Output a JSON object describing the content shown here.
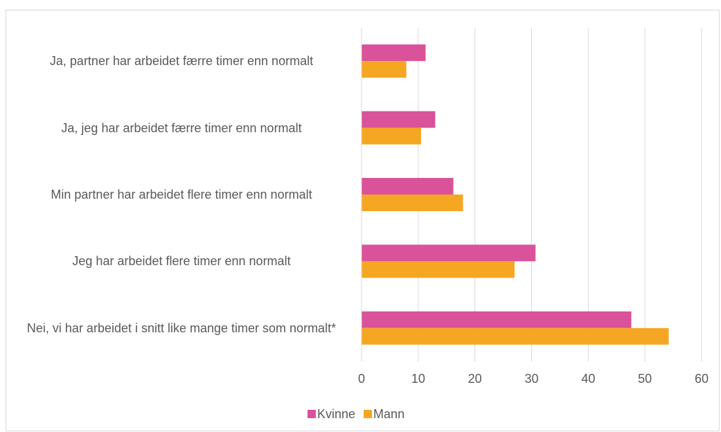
{
  "chart_data": {
    "type": "barh",
    "categories": [
      "Ja, partner har arbeidet  færre  timer enn normalt",
      "Ja, jeg har arbeidet  færre  timer enn normalt",
      "Min partner har arbeidet  flere  timer enn normalt",
      "Jeg har arbeidet  flere  timer enn normalt",
      "Nei, vi har arbeidet i snitt like mange timer som normalt*"
    ],
    "series": [
      {
        "name": "Kvinne",
        "color": "#d9529a",
        "values": [
          11.3,
          13,
          16.2,
          30.7,
          47.6
        ]
      },
      {
        "name": "Mann",
        "color": "#f5a623",
        "values": [
          7.9,
          10.5,
          17.9,
          27,
          54.2
        ]
      }
    ],
    "xlim": [
      0,
      60
    ],
    "xticks": [
      0,
      10,
      20,
      30,
      40,
      50,
      60
    ],
    "grid": true,
    "legend": "bottom"
  }
}
